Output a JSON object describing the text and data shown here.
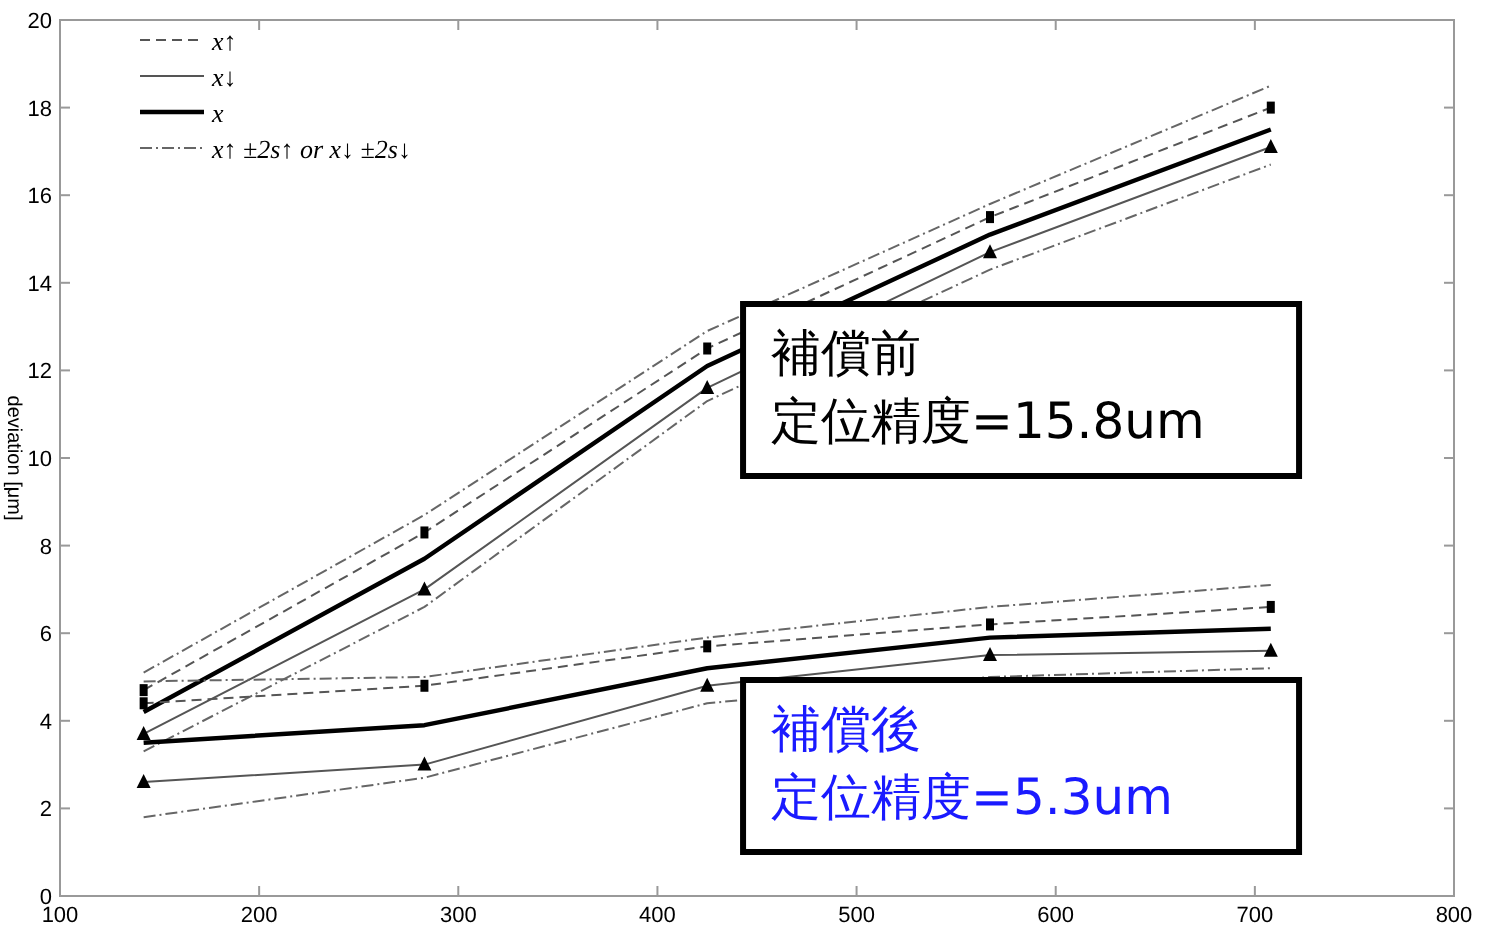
{
  "chart_data": {
    "type": "line",
    "ylabel": "deviation [μm]",
    "x": [
      142,
      283,
      425,
      567,
      708
    ],
    "xlim": [
      100,
      800
    ],
    "xticks": [
      100,
      200,
      300,
      400,
      500,
      600,
      700,
      800
    ],
    "ylim": [
      0,
      20
    ],
    "yticks": [
      0,
      2,
      4,
      6,
      8,
      10,
      12,
      14,
      16,
      18,
      20
    ],
    "grid": false,
    "legend": "top left",
    "series": [
      {
        "name": "x↑",
        "color": "#555555",
        "line_style": "dashed",
        "marker": "square",
        "values": [
          4.7,
          8.3,
          12.5,
          15.5,
          18.0
        ]
      },
      {
        "name": "x↓",
        "color": "#555555",
        "line_style": "solid",
        "marker": "triangle",
        "values": [
          3.7,
          7.0,
          11.6,
          14.7,
          17.1
        ]
      },
      {
        "name": "x",
        "color": "#000000",
        "line_style": "solid",
        "marker": "none",
        "values": [
          4.2,
          7.7,
          12.1,
          15.1,
          17.5
        ]
      },
      {
        "name": "x↑ ±2s↑ or x↓ ±2s↓",
        "color": "#666666",
        "line_style": "dashdot",
        "marker": "none",
        "values": [
          5.1,
          8.7,
          12.9,
          15.8,
          18.5
        ]
      },
      {
        "color": "#666666",
        "line_style": "dashdot",
        "marker": "none",
        "values": [
          3.3,
          6.6,
          11.3,
          14.3,
          16.7
        ]
      },
      {
        "color": "#555555",
        "line_style": "dashed",
        "marker": "square",
        "values": [
          4.4,
          4.8,
          5.7,
          6.2,
          6.6
        ]
      },
      {
        "color": "#555555",
        "line_style": "solid",
        "marker": "triangle",
        "values": [
          2.6,
          3.0,
          4.8,
          5.5,
          5.6
        ]
      },
      {
        "color": "#000000",
        "line_style": "solid",
        "marker": "none",
        "values": [
          3.5,
          3.9,
          5.2,
          5.9,
          6.1
        ]
      },
      {
        "color": "#666666",
        "line_style": "dashdot",
        "marker": "none",
        "values": [
          4.9,
          5.0,
          5.9,
          6.6,
          7.1
        ]
      },
      {
        "color": "#666666",
        "line_style": "dashdot",
        "marker": "none",
        "values": [
          1.8,
          2.7,
          4.4,
          5.0,
          5.2
        ]
      }
    ],
    "annotations": [
      "補償前",
      "定位精度=15.8um",
      "補償後",
      "定位精度=5.3um"
    ]
  }
}
